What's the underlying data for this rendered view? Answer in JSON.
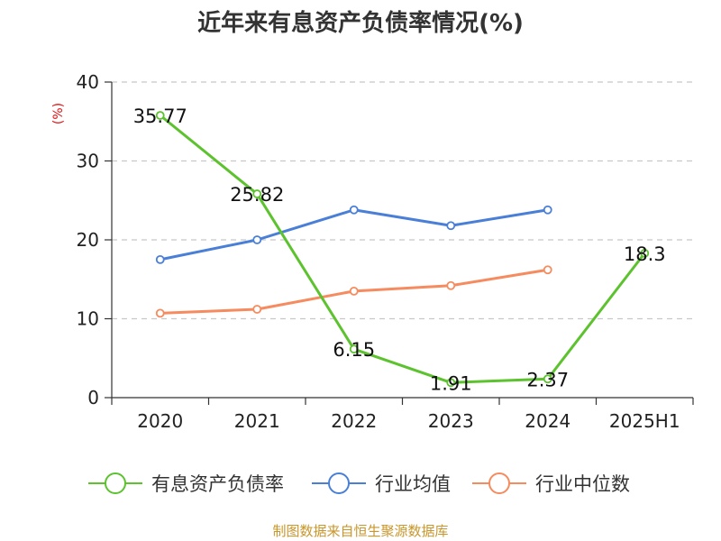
{
  "chart_data": {
    "type": "line",
    "title": "近年来有息资产负债率情况(%)",
    "ylabel": "(%)",
    "xlabel": "",
    "categories": [
      "2020",
      "2021",
      "2022",
      "2023",
      "2024",
      "2025H1"
    ],
    "ylim": [
      0,
      40
    ],
    "yticks": [
      0,
      10,
      20,
      30,
      40
    ],
    "grid": true,
    "legend_position": "bottom",
    "series": [
      {
        "name": "有息资产负债率",
        "color": "#5cc22e",
        "values": [
          35.77,
          25.82,
          6.15,
          1.91,
          2.37,
          18.3
        ],
        "labels": [
          "35.77",
          "25.82",
          "6.15",
          "1.91",
          "2.37",
          "18.3"
        ]
      },
      {
        "name": "行业均值",
        "color": "#4a7fd8",
        "values": [
          17.5,
          20.0,
          23.8,
          21.8,
          23.8,
          null
        ]
      },
      {
        "name": "行业中位数",
        "color": "#f58b5e",
        "values": [
          10.7,
          11.2,
          13.5,
          14.2,
          16.2,
          null
        ]
      }
    ]
  },
  "source": "制图数据来自恒生聚源数据库"
}
